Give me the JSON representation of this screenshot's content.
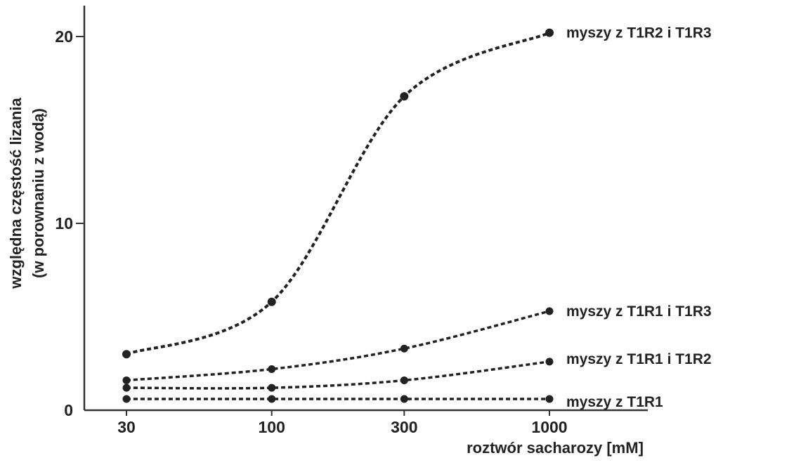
{
  "chart_data": {
    "type": "line",
    "title": "",
    "xlabel": "roztwór sacharozy [mM]",
    "ylabel_line1": "względna częstość lizania",
    "ylabel_line2": "(w porownaniu z wodą)",
    "x_scale": "log",
    "x": [
      30,
      100,
      300,
      1000
    ],
    "x_tick_labels": [
      "30",
      "100",
      "300",
      "1000"
    ],
    "y_ticks": [
      0,
      10,
      20
    ],
    "y_tick_labels": [
      "0",
      "10",
      "20"
    ],
    "ylim": [
      0,
      20
    ],
    "grid": false,
    "legend": "series labels at right end of each line",
    "line_style": "dotted",
    "colors": {
      "line": "#222222",
      "marker": "#222222",
      "axis": "#333333",
      "text": "#222222"
    },
    "series": [
      {
        "name": "myszy z T1R2 i T1R3",
        "values": [
          3.0,
          5.8,
          16.8,
          20.2
        ]
      },
      {
        "name": "myszy z T1R1 i T1R3",
        "values": [
          1.6,
          2.2,
          3.3,
          5.3
        ]
      },
      {
        "name": "myszy z T1R1 i T1R2",
        "values": [
          1.2,
          1.2,
          1.6,
          2.6
        ]
      },
      {
        "name": "myszy z T1R1",
        "values": [
          0.6,
          0.6,
          0.6,
          0.6
        ]
      }
    ]
  }
}
